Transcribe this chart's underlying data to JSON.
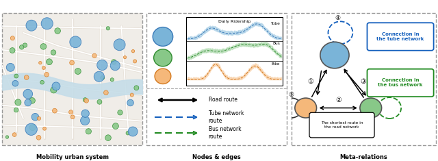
{
  "panel_labels": [
    "Mobility urban system",
    "Nodes & edges",
    "Meta-relations"
  ],
  "ridership_title": "Daily Ridership",
  "tube_color": "#7ab4d8",
  "bus_color": "#88c888",
  "bike_color": "#f5b87a",
  "tube_color_dark": "#3a7ab8",
  "bus_color_dark": "#2e8b2e",
  "bike_color_dark": "#d47a20",
  "node_tube_color": "#7ab4d8",
  "node_bus_color": "#88c888",
  "node_bike_color": "#f5b87a",
  "connection_tube_color": "#1560bd",
  "connection_bus_color": "#228B22",
  "map_bg": "#f0ede8",
  "map_road": "#d8d0c8",
  "map_road2": "#ffffff",
  "map_river": "#c5dde8",
  "labels": {
    "road_route": "Road route",
    "tube_route": "Tube network\nroute",
    "bus_route": "Bus network\nroute",
    "connection_tube": "Connection in\nthe tube network",
    "connection_bus": "Connection in\nthe bus network",
    "shortest_route": "The shortest route in\nthe road network"
  }
}
